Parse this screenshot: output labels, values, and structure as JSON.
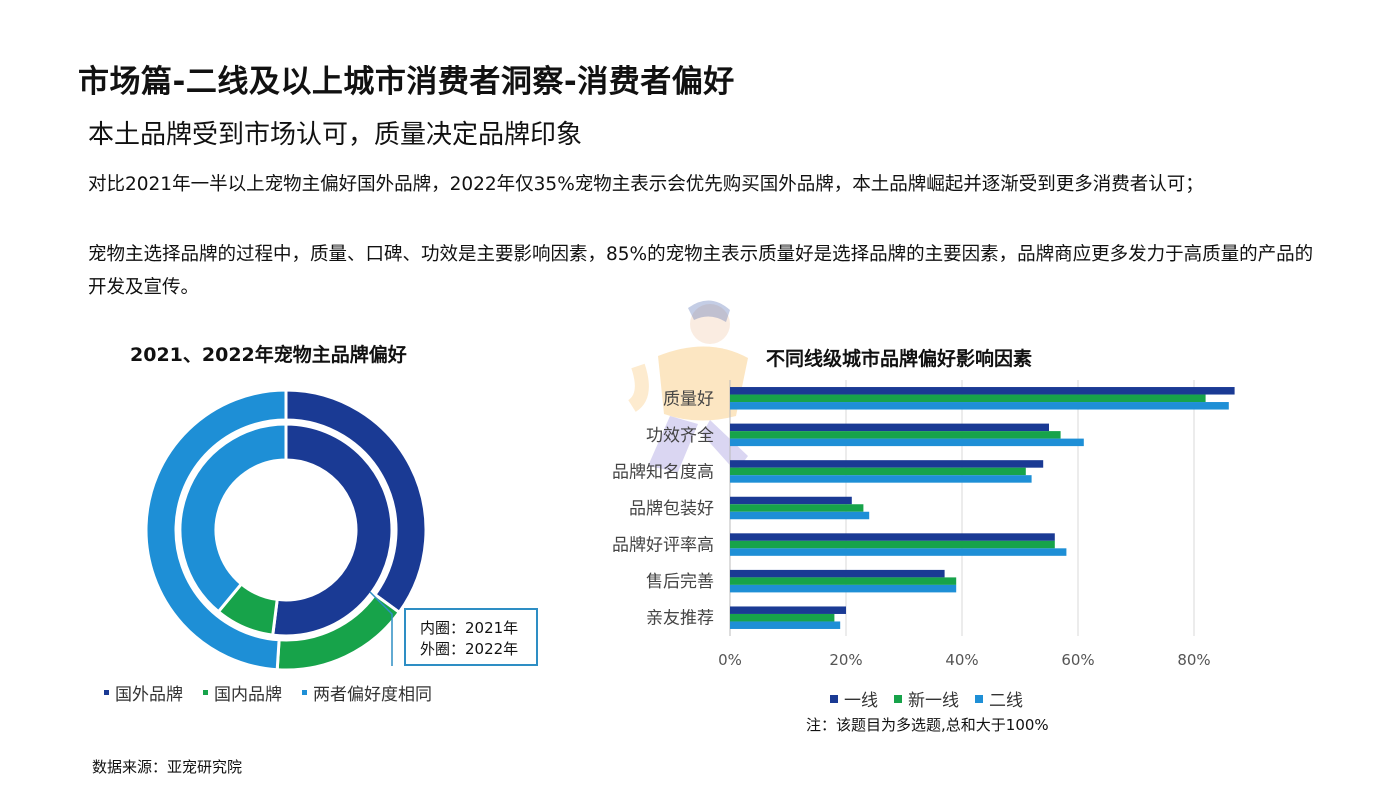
{
  "page": {
    "title": "市场篇-二线及以上城市消费者洞察-消费者偏好",
    "subtitle": "本土品牌受到市场认可，质量决定品牌印象",
    "paragraphs": [
      "对比2021年一半以上宠物主偏好国外品牌，2022年仅35%宠物主表示会优先购买国外品牌，本土品牌崛起并逐渐受到更多消费者认可；",
      "宠物主选择品牌的过程中，质量、口碑、功效是主要影响因素，85%的宠物主表示质量好是选择品牌的主要因素，品牌商应更多发力于高质量的产品的开发及宣传。"
    ],
    "source": "数据来源：亚宠研究院"
  },
  "colors": {
    "dark_blue": "#1A3A94",
    "green": "#17A34A",
    "light_blue": "#1E8FD6"
  },
  "chart_data": [
    {
      "type": "pie",
      "variant": "double-donut",
      "title": "2021、2022年宠物主品牌偏好",
      "categories": [
        "国外品牌",
        "国内品牌",
        "两者偏好度相同"
      ],
      "rings": [
        {
          "name": "2021年",
          "ring": "inner",
          "values": [
            52,
            9,
            39
          ]
        },
        {
          "name": "2022年",
          "ring": "outer",
          "values": [
            35,
            16,
            49
          ]
        }
      ],
      "annotation": [
        "内圈：2021年",
        "外圈：2022年"
      ],
      "legend": [
        "国外品牌",
        "国内品牌",
        "两者偏好度相同"
      ]
    },
    {
      "type": "bar",
      "orientation": "horizontal",
      "title": "不同线级城市品牌偏好影响因素",
      "categories": [
        "质量好",
        "功效齐全",
        "品牌知名度高",
        "品牌包装好",
        "品牌好评率高",
        "售后完善",
        "亲友推荐"
      ],
      "series": [
        {
          "name": "一线",
          "values": [
            87,
            55,
            54,
            21,
            56,
            37,
            20
          ]
        },
        {
          "name": "新一线",
          "values": [
            82,
            57,
            51,
            23,
            56,
            39,
            18
          ]
        },
        {
          "name": "二线",
          "values": [
            86,
            61,
            52,
            24,
            58,
            39,
            19
          ]
        }
      ],
      "xlim": [
        0,
        90
      ],
      "xticks": [
        0,
        20,
        40,
        60,
        80
      ],
      "xtick_labels": [
        "0%",
        "20%",
        "40%",
        "60%",
        "80%"
      ],
      "grid": true,
      "legend": "bottom",
      "footnote": "注：该题目为多选题,总和大于100%"
    }
  ]
}
